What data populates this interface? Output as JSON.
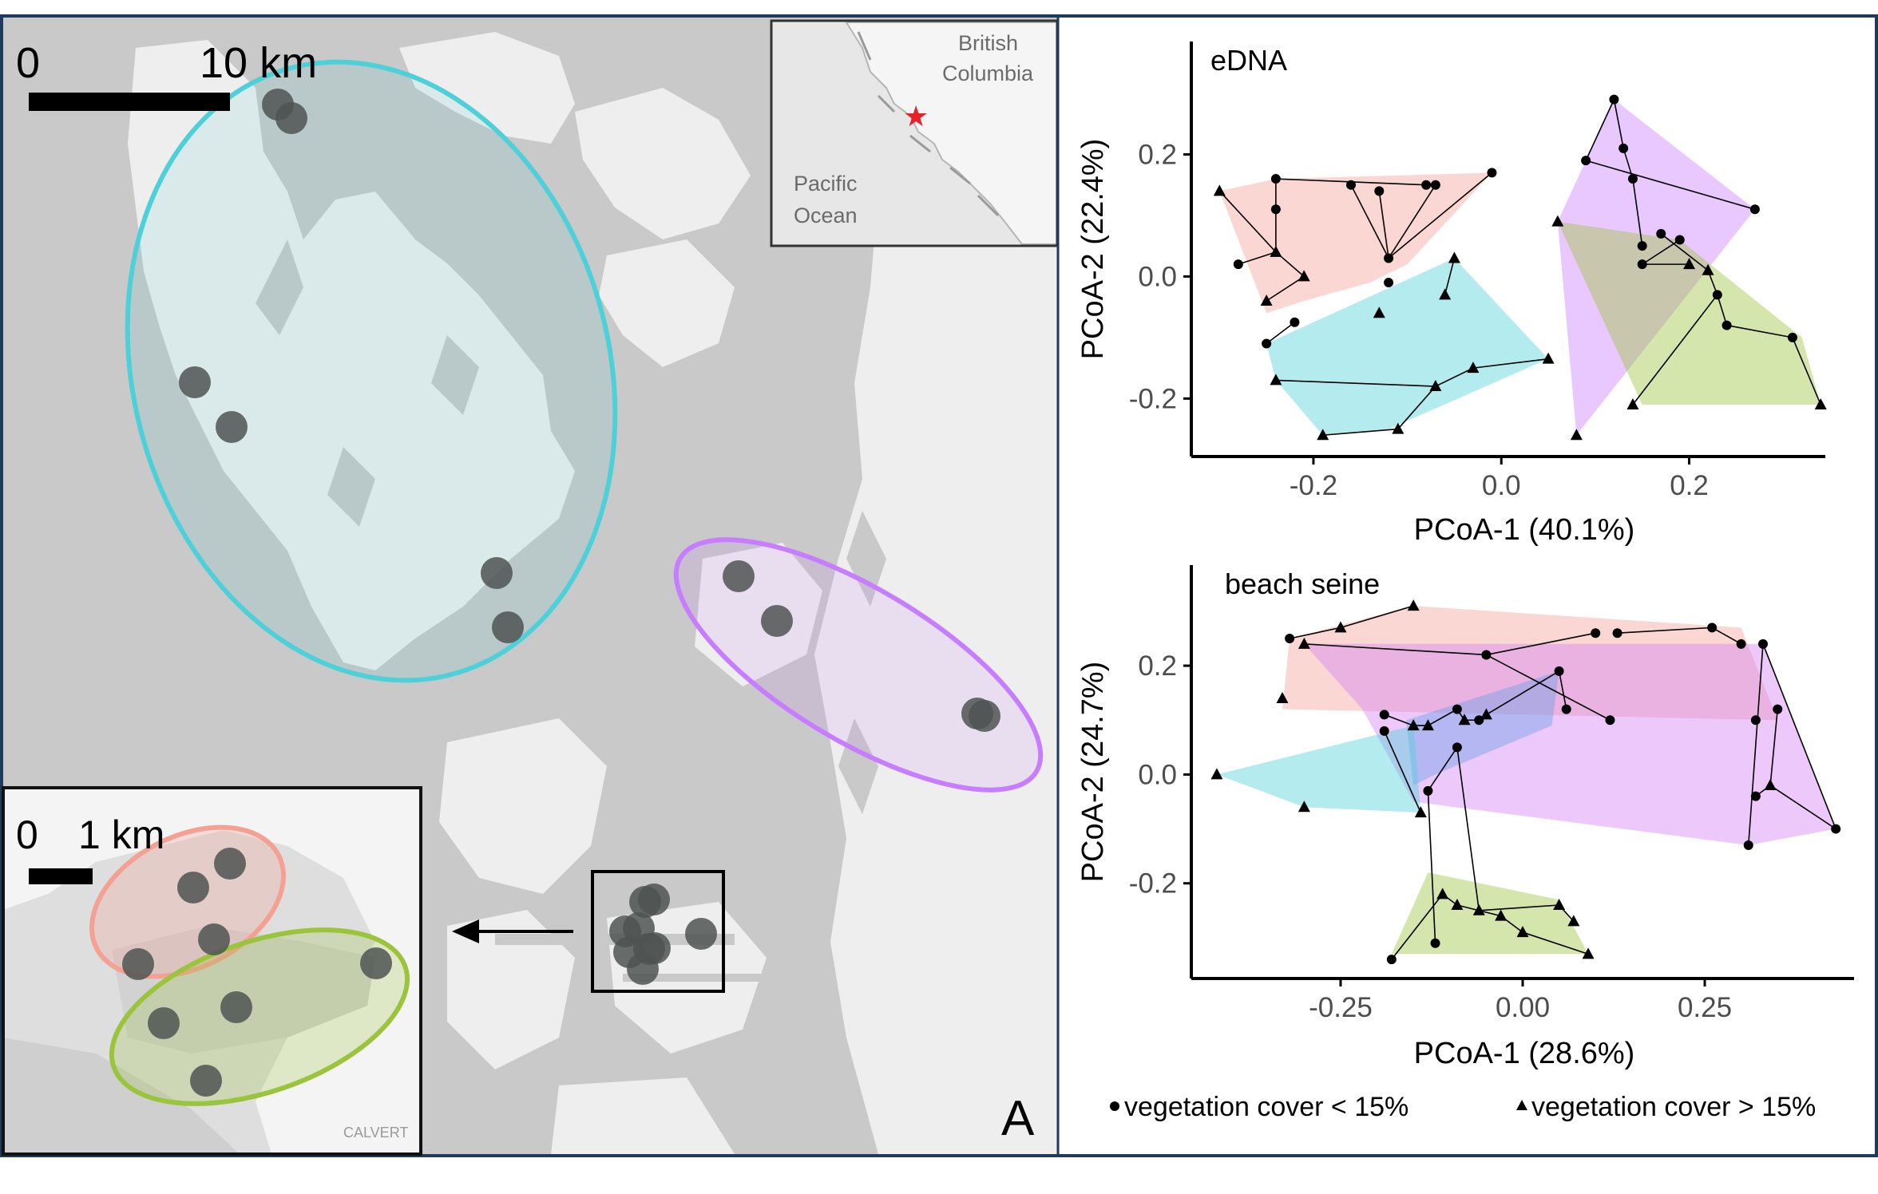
{
  "map": {
    "scale_zero": "0",
    "scale_label": "10 km",
    "panel_letter": "A",
    "inset_labels": {
      "province": [
        "British",
        "Columbia"
      ],
      "ocean": [
        "Pacific",
        "Ocean"
      ]
    },
    "zoom_inset": {
      "scale_zero": "0",
      "scale_label": "1 km",
      "watermark": "CALVERT"
    },
    "colors": {
      "blue": "#4dd0d8",
      "purple": "#c77dff",
      "red": "#f4a093",
      "green": "#9ac43c",
      "site": "#4f5352",
      "marker_star": "#e8202a",
      "frame": "#1f3a5a"
    }
  },
  "chart_data": [
    {
      "type": "scatter",
      "title": "eDNA",
      "xlabel": "PCoA-1 (40.1%)",
      "ylabel": "PCoA-2 (22.4%)",
      "xlim": [
        -0.33,
        0.35
      ],
      "ylim": [
        -0.295,
        0.385
      ],
      "xticks": [
        {
          "v": -0.2,
          "label": "-0.2"
        },
        {
          "v": 0.0,
          "label": "0.0"
        },
        {
          "v": 0.2,
          "label": "0.2"
        }
      ],
      "yticks": [
        {
          "v": -0.2,
          "label": "-0.2"
        },
        {
          "v": 0.0,
          "label": "0.0"
        },
        {
          "v": 0.2,
          "label": "0.2"
        }
      ],
      "groups": [
        {
          "color": "#f4a093",
          "hull": [
            [
              -0.3,
              0.14
            ],
            [
              -0.24,
              0.16
            ],
            [
              -0.01,
              0.17
            ],
            [
              -0.1,
              0.02
            ],
            [
              -0.14,
              -0.01
            ],
            [
              -0.21,
              -0.04
            ],
            [
              -0.25,
              -0.06
            ]
          ],
          "points": [
            {
              "x": -0.24,
              "y": 0.16,
              "s": "c"
            },
            {
              "x": -0.24,
              "y": 0.11,
              "s": "c"
            },
            {
              "x": -0.28,
              "y": 0.02,
              "s": "c"
            },
            {
              "x": -0.16,
              "y": 0.15,
              "s": "c"
            },
            {
              "x": -0.13,
              "y": 0.14,
              "s": "c"
            },
            {
              "x": -0.08,
              "y": 0.15,
              "s": "c"
            },
            {
              "x": -0.07,
              "y": 0.15,
              "s": "c"
            },
            {
              "x": -0.01,
              "y": 0.17,
              "s": "c"
            },
            {
              "x": -0.12,
              "y": 0.03,
              "s": "c"
            },
            {
              "x": -0.3,
              "y": 0.14,
              "s": "t"
            },
            {
              "x": -0.24,
              "y": 0.04,
              "s": "t"
            },
            {
              "x": -0.21,
              "y": 0.0,
              "s": "t"
            },
            {
              "x": -0.25,
              "y": -0.04,
              "s": "t"
            }
          ],
          "edges": [
            [
              0,
              1
            ],
            [
              1,
              10
            ],
            [
              10,
              2
            ],
            [
              10,
              11
            ],
            [
              11,
              12
            ],
            [
              0,
              5
            ],
            [
              5,
              6
            ],
            [
              3,
              8
            ],
            [
              4,
              8
            ],
            [
              6,
              8
            ],
            [
              7,
              8
            ],
            [
              9,
              10
            ]
          ]
        },
        {
          "color": "#4dd0d8",
          "hull": [
            [
              -0.25,
              -0.11
            ],
            [
              -0.05,
              0.03
            ],
            [
              0.05,
              -0.135
            ],
            [
              -0.12,
              -0.25
            ],
            [
              -0.19,
              -0.26
            ],
            [
              -0.24,
              -0.17
            ]
          ],
          "points": [
            {
              "x": -0.25,
              "y": -0.11,
              "s": "c"
            },
            {
              "x": -0.22,
              "y": -0.075,
              "s": "c"
            },
            {
              "x": -0.12,
              "y": -0.01,
              "s": "c"
            },
            {
              "x": -0.05,
              "y": 0.03,
              "s": "t"
            },
            {
              "x": -0.06,
              "y": -0.03,
              "s": "t"
            },
            {
              "x": -0.13,
              "y": -0.06,
              "s": "t"
            },
            {
              "x": -0.03,
              "y": -0.15,
              "s": "t"
            },
            {
              "x": 0.05,
              "y": -0.135,
              "s": "t"
            },
            {
              "x": -0.07,
              "y": -0.18,
              "s": "t"
            },
            {
              "x": -0.24,
              "y": -0.17,
              "s": "t"
            },
            {
              "x": -0.19,
              "y": -0.26,
              "s": "t"
            },
            {
              "x": -0.11,
              "y": -0.25,
              "s": "t"
            }
          ],
          "edges": [
            [
              0,
              1
            ],
            [
              3,
              4
            ],
            [
              7,
              6
            ],
            [
              6,
              8
            ],
            [
              8,
              11
            ],
            [
              9,
              8
            ],
            [
              10,
              11
            ]
          ]
        },
        {
          "color": "#c77dff",
          "hull": [
            [
              0.12,
              0.29
            ],
            [
              0.27,
              0.11
            ],
            [
              0.08,
              -0.26
            ],
            [
              0.06,
              0.09
            ],
            [
              0.09,
              0.19
            ]
          ],
          "points": [
            {
              "x": 0.12,
              "y": 0.29,
              "s": "c"
            },
            {
              "x": 0.09,
              "y": 0.19,
              "s": "c"
            },
            {
              "x": 0.13,
              "y": 0.21,
              "s": "c"
            },
            {
              "x": 0.14,
              "y": 0.16,
              "s": "c"
            },
            {
              "x": 0.27,
              "y": 0.11,
              "s": "c"
            },
            {
              "x": 0.06,
              "y": 0.09,
              "s": "t"
            },
            {
              "x": 0.08,
              "y": -0.26,
              "s": "t"
            },
            {
              "x": 0.15,
              "y": 0.05,
              "s": "c"
            }
          ],
          "edges": [
            [
              0,
              1
            ],
            [
              0,
              2
            ],
            [
              2,
              3
            ],
            [
              3,
              7
            ],
            [
              1,
              4
            ]
          ]
        },
        {
          "color": "#9ac43c",
          "hull": [
            [
              0.06,
              0.09
            ],
            [
              0.19,
              0.06
            ],
            [
              0.32,
              -0.1
            ],
            [
              0.34,
              -0.21
            ],
            [
              0.15,
              -0.21
            ]
          ],
          "points": [
            {
              "x": 0.17,
              "y": 0.07,
              "s": "c"
            },
            {
              "x": 0.22,
              "y": 0.01,
              "s": "t"
            },
            {
              "x": 0.23,
              "y": -0.03,
              "s": "c"
            },
            {
              "x": 0.24,
              "y": -0.08,
              "s": "c"
            },
            {
              "x": 0.31,
              "y": -0.1,
              "s": "c"
            },
            {
              "x": 0.14,
              "y": -0.21,
              "s": "t"
            },
            {
              "x": 0.34,
              "y": -0.21,
              "s": "t"
            },
            {
              "x": 0.19,
              "y": 0.06,
              "s": "c"
            },
            {
              "x": 0.15,
              "y": 0.02,
              "s": "c"
            },
            {
              "x": 0.2,
              "y": 0.02,
              "s": "t"
            }
          ],
          "edges": [
            [
              0,
              1
            ],
            [
              1,
              2
            ],
            [
              2,
              3
            ],
            [
              3,
              4
            ],
            [
              4,
              6
            ],
            [
              2,
              5
            ],
            [
              7,
              8
            ],
            [
              8,
              9
            ]
          ]
        }
      ]
    },
    {
      "type": "scatter",
      "title": "beach seine",
      "xlabel": "PCoA-1 (28.6%)",
      "ylabel": "PCoA-2 (24.7%)",
      "xlim": [
        -0.455,
        0.455
      ],
      "ylim": [
        -0.375,
        0.385
      ],
      "xticks": [
        {
          "v": -0.25,
          "label": "-0.25"
        },
        {
          "v": 0.0,
          "label": "0.00"
        },
        {
          "v": 0.25,
          "label": "0.25"
        }
      ],
      "yticks": [
        {
          "v": -0.2,
          "label": "-0.2"
        },
        {
          "v": 0.0,
          "label": "0.0"
        },
        {
          "v": 0.2,
          "label": "0.2"
        }
      ],
      "groups": [
        {
          "color": "#f4a093",
          "hull": [
            [
              -0.32,
              0.25
            ],
            [
              -0.15,
              0.31
            ],
            [
              0.3,
              0.27
            ],
            [
              0.35,
              0.1
            ],
            [
              -0.33,
              0.12
            ]
          ],
          "points": [
            {
              "x": -0.32,
              "y": 0.25,
              "s": "c"
            },
            {
              "x": -0.15,
              "y": 0.31,
              "s": "t"
            },
            {
              "x": -0.25,
              "y": 0.27,
              "s": "t"
            },
            {
              "x": 0.13,
              "y": 0.26,
              "s": "c"
            },
            {
              "x": 0.26,
              "y": 0.27,
              "s": "c"
            },
            {
              "x": 0.3,
              "y": 0.24,
              "s": "c"
            },
            {
              "x": -0.33,
              "y": 0.14,
              "s": "t"
            },
            {
              "x": 0.32,
              "y": 0.1,
              "s": "c"
            }
          ],
          "edges": [
            [
              0,
              2
            ],
            [
              2,
              1
            ],
            [
              3,
              4
            ],
            [
              4,
              5
            ]
          ]
        },
        {
          "color": "#d27ff4",
          "hull": [
            [
              -0.3,
              0.24
            ],
            [
              0.33,
              0.24
            ],
            [
              0.43,
              -0.1
            ],
            [
              0.31,
              -0.13
            ],
            [
              -0.15,
              -0.05
            ],
            [
              -0.22,
              0.12
            ]
          ],
          "points": [
            {
              "x": -0.3,
              "y": 0.24,
              "s": "t"
            },
            {
              "x": 0.33,
              "y": 0.24,
              "s": "c"
            },
            {
              "x": 0.43,
              "y": -0.1,
              "s": "c"
            },
            {
              "x": 0.31,
              "y": -0.13,
              "s": "c"
            },
            {
              "x": 0.35,
              "y": 0.12,
              "s": "c"
            },
            {
              "x": -0.05,
              "y": 0.22,
              "s": "c"
            },
            {
              "x": 0.12,
              "y": 0.1,
              "s": "c"
            },
            {
              "x": 0.32,
              "y": -0.04,
              "s": "c"
            },
            {
              "x": 0.34,
              "y": -0.02,
              "s": "t"
            },
            {
              "x": 0.1,
              "y": 0.26,
              "s": "c"
            }
          ],
          "edges": [
            [
              0,
              5
            ],
            [
              5,
              9
            ],
            [
              5,
              6
            ],
            [
              1,
              2
            ],
            [
              1,
              3
            ],
            [
              4,
              8
            ],
            [
              8,
              7
            ],
            [
              8,
              2
            ]
          ]
        },
        {
          "color": "#6aa0e8",
          "hull": [
            [
              -0.16,
              0.1
            ],
            [
              0.05,
              0.19
            ],
            [
              0.04,
              0.09
            ],
            [
              -0.12,
              0.0
            ],
            [
              -0.15,
              -0.02
            ]
          ],
          "points": [
            {
              "x": -0.19,
              "y": 0.11,
              "s": "c"
            },
            {
              "x": -0.15,
              "y": 0.09,
              "s": "t"
            },
            {
              "x": -0.09,
              "y": 0.12,
              "s": "c"
            },
            {
              "x": -0.08,
              "y": 0.1,
              "s": "t"
            },
            {
              "x": -0.06,
              "y": 0.1,
              "s": "c"
            },
            {
              "x": -0.05,
              "y": 0.11,
              "s": "t"
            },
            {
              "x": 0.05,
              "y": 0.19,
              "s": "c"
            },
            {
              "x": 0.06,
              "y": 0.12,
              "s": "c"
            },
            {
              "x": -0.13,
              "y": 0.09,
              "s": "t"
            }
          ],
          "edges": [
            [
              0,
              1
            ],
            [
              1,
              8
            ],
            [
              8,
              2
            ],
            [
              2,
              3
            ],
            [
              3,
              4
            ],
            [
              4,
              5
            ],
            [
              5,
              6
            ],
            [
              6,
              7
            ]
          ]
        },
        {
          "color": "#4dd0d8",
          "hull": [
            [
              -0.42,
              0.0
            ],
            [
              -0.15,
              0.09
            ],
            [
              -0.14,
              -0.07
            ],
            [
              -0.3,
              -0.06
            ]
          ],
          "points": [
            {
              "x": -0.42,
              "y": 0.0,
              "s": "t"
            },
            {
              "x": -0.3,
              "y": -0.06,
              "s": "t"
            },
            {
              "x": -0.19,
              "y": 0.08,
              "s": "c"
            },
            {
              "x": -0.14,
              "y": -0.07,
              "s": "t"
            }
          ],
          "edges": [
            [
              2,
              3
            ]
          ]
        },
        {
          "color": "#9ac43c",
          "hull": [
            [
              -0.18,
              -0.33
            ],
            [
              -0.13,
              -0.18
            ],
            [
              0.05,
              -0.23
            ],
            [
              0.09,
              -0.33
            ]
          ],
          "points": [
            {
              "x": -0.18,
              "y": -0.34,
              "s": "c"
            },
            {
              "x": -0.12,
              "y": -0.31,
              "s": "c"
            },
            {
              "x": -0.11,
              "y": -0.22,
              "s": "t"
            },
            {
              "x": -0.09,
              "y": -0.24,
              "s": "t"
            },
            {
              "x": -0.06,
              "y": -0.25,
              "s": "t"
            },
            {
              "x": 0.0,
              "y": -0.29,
              "s": "t"
            },
            {
              "x": 0.05,
              "y": -0.24,
              "s": "t"
            },
            {
              "x": 0.07,
              "y": -0.27,
              "s": "t"
            },
            {
              "x": 0.09,
              "y": -0.33,
              "s": "t"
            },
            {
              "x": -0.03,
              "y": -0.26,
              "s": "t"
            },
            {
              "x": -0.09,
              "y": 0.05,
              "s": "c"
            },
            {
              "x": -0.13,
              "y": -0.03,
              "s": "c"
            }
          ],
          "edges": [
            [
              0,
              2
            ],
            [
              2,
              3
            ],
            [
              3,
              9
            ],
            [
              9,
              5
            ],
            [
              5,
              8
            ],
            [
              1,
              11
            ],
            [
              11,
              10
            ],
            [
              10,
              4
            ],
            [
              4,
              6
            ],
            [
              6,
              7
            ]
          ]
        }
      ]
    }
  ],
  "legend": {
    "circle_label": "vegetation cover < 15%",
    "triangle_label": "vegetation cover > 15%"
  }
}
